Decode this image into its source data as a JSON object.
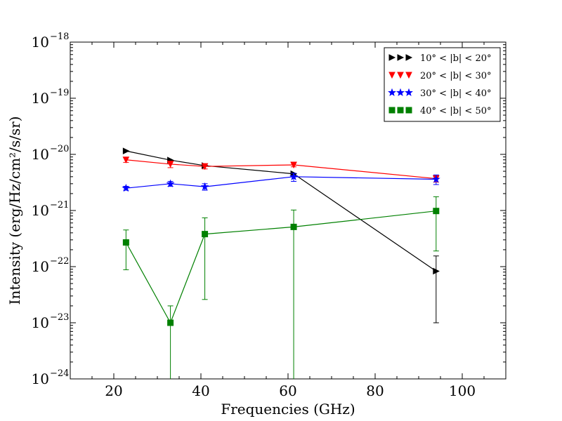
{
  "chart_data": {
    "type": "line",
    "xlabel": "Frequencies (GHz)",
    "ylabel": "Intensity (erg/Hz/cm²/s/sr)",
    "xlim": [
      10,
      110
    ],
    "ylim": [
      1e-24,
      1e-18
    ],
    "yscale": "log",
    "x_ticks": [
      20,
      40,
      60,
      80,
      100
    ],
    "x_tick_labels": [
      "20",
      "40",
      "60",
      "80",
      "100"
    ],
    "y_ticks": [
      -24,
      -23,
      -22,
      -21,
      -20,
      -19,
      -18
    ],
    "y_tick_labels": [
      "10",
      "10",
      "10",
      "10",
      "10",
      "10",
      "10"
    ],
    "y_tick_exponents": [
      "−24",
      "−23",
      "−22",
      "−21",
      "−20",
      "−19",
      "−18"
    ],
    "legend_position": "top-right",
    "series": [
      {
        "name": "10° < |b| < 20°",
        "color": "#000000",
        "marker": "triangle-right",
        "x": [
          22.8,
          33.0,
          40.9,
          61.3,
          94.0
        ],
        "y": [
          1.15e-20,
          7.9e-21,
          6.3e-21,
          4.5e-21,
          8.3e-23
        ],
        "err_low": [
          null,
          null,
          null,
          null,
          1e-23
        ],
        "err_high": [
          null,
          null,
          null,
          null,
          1.55e-22
        ]
      },
      {
        "name": "20° < |b| < 30°",
        "color": "#ff0000",
        "marker": "triangle-down",
        "x": [
          22.8,
          33.0,
          40.9,
          61.3,
          94.0
        ],
        "y": [
          8e-21,
          6.7e-21,
          6.1e-21,
          6.5e-21,
          3.7e-21
        ],
        "err_low": [
          7.2e-21,
          5.8e-21,
          5.5e-21,
          6e-21,
          3.2e-21
        ],
        "err_high": [
          8.8e-21,
          7.6e-21,
          6.8e-21,
          7e-21,
          4.2e-21
        ]
      },
      {
        "name": "30° < |b| < 40°",
        "color": "#0000ff",
        "marker": "star",
        "x": [
          22.8,
          33.0,
          40.9,
          61.3,
          94.0
        ],
        "y": [
          2.5e-21,
          3e-21,
          2.65e-21,
          4e-21,
          3.6e-21
        ],
        "err_low": [
          2.3e-21,
          2.7e-21,
          2.3e-21,
          3.3e-21,
          2.9e-21
        ],
        "err_high": [
          2.7e-21,
          3.3e-21,
          3e-21,
          4.6e-21,
          4.3e-21
        ]
      },
      {
        "name": "40° < |b| < 50°",
        "color": "#008000",
        "marker": "square",
        "x": [
          22.8,
          33.0,
          40.9,
          61.3,
          94.0
        ],
        "y": [
          2.7e-22,
          1e-23,
          3.8e-22,
          5.1e-22,
          9.8e-22
        ],
        "err_low": [
          8.8e-23,
          1e-24,
          2.6e-23,
          1e-24,
          1.9e-22
        ],
        "err_high": [
          4.5e-22,
          2e-23,
          7.4e-22,
          1.02e-21,
          1.76e-21
        ]
      }
    ]
  }
}
